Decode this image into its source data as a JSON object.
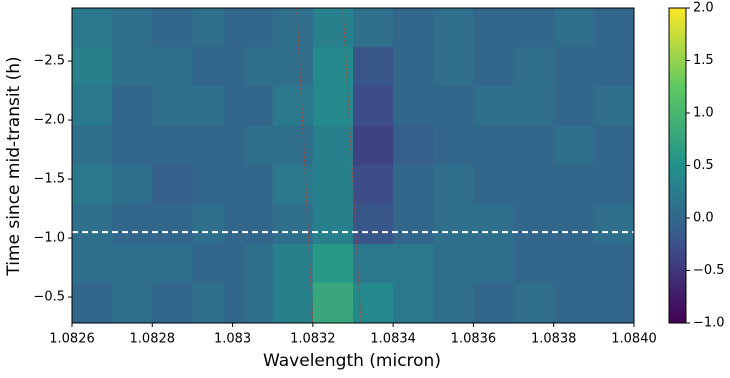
{
  "chart_data": {
    "type": "heatmap",
    "xlabel": "Wavelength (micron)",
    "ylabel": "Time since mid-transit (h)",
    "xlim": [
      1.0826,
      1.084
    ],
    "xticks": [
      1.0826,
      1.0828,
      1.083,
      1.0832,
      1.0834,
      1.0836,
      1.0838,
      {
        "value": 1.084,
        "label": "1.0840"
      }
    ],
    "ylim": [
      -2.95,
      -0.28
    ],
    "y_inverted": true,
    "yticks": [
      {
        "value": -2.5,
        "label": "−2.5"
      },
      {
        "value": -2,
        "label": "−2.0"
      },
      {
        "value": -1.5,
        "label": "−1.5"
      },
      {
        "value": -1,
        "label": "−1.0"
      },
      {
        "value": -0.5,
        "label": "−0.5"
      }
    ],
    "x_bins": [
      1.0826,
      1.0827,
      1.0828,
      1.0829,
      1.083,
      1.0831,
      1.0832,
      1.0833,
      1.0834,
      1.0835,
      1.0836,
      1.0837,
      1.0838,
      1.0839,
      1.084
    ],
    "y_bins": [
      -2.95,
      -2.62,
      -2.29,
      -1.95,
      -1.62,
      -1.29,
      -0.95,
      -0.62,
      -0.28
    ],
    "z": [
      [
        0.2,
        0.1,
        0.0,
        0.1,
        0.0,
        0.1,
        0.3,
        0.1,
        0.0,
        0.1,
        0.0,
        0.0,
        0.1,
        0.0
      ],
      [
        0.3,
        0.1,
        0.1,
        0.0,
        0.1,
        0.1,
        0.4,
        -0.2,
        0.0,
        0.1,
        0.0,
        0.1,
        0.0,
        0.0
      ],
      [
        0.2,
        0.0,
        0.1,
        0.1,
        0.0,
        0.2,
        0.4,
        -0.3,
        0.0,
        0.0,
        0.1,
        0.1,
        0.0,
        0.1
      ],
      [
        0.1,
        0.0,
        0.0,
        0.0,
        0.1,
        0.1,
        0.3,
        -0.4,
        -0.1,
        0.0,
        0.0,
        0.0,
        0.1,
        0.0
      ],
      [
        0.2,
        0.1,
        -0.1,
        0.0,
        0.0,
        0.2,
        0.3,
        -0.3,
        0.0,
        0.1,
        0.0,
        0.0,
        0.0,
        0.0
      ],
      [
        0.1,
        0.0,
        0.0,
        0.1,
        0.0,
        0.1,
        0.3,
        -0.2,
        0.0,
        0.1,
        0.1,
        0.0,
        0.0,
        0.1
      ],
      [
        0.1,
        0.1,
        0.1,
        0.0,
        0.1,
        0.3,
        0.6,
        0.2,
        0.2,
        0.1,
        0.1,
        0.0,
        0.0,
        0.0
      ],
      [
        0.0,
        0.1,
        0.0,
        0.1,
        0.1,
        0.3,
        0.8,
        0.4,
        0.2,
        0.1,
        0.0,
        0.1,
        0.0,
        0.0
      ]
    ],
    "masked": {
      "x": [
        1.08298,
        1.08303
      ],
      "value": 0
    },
    "hline": {
      "y": -1.05,
      "color": "#ffffff",
      "dash": true
    },
    "tracks": [
      {
        "color": "#c0392b",
        "x": [
          1.08316,
          1.0832
        ]
      },
      {
        "color": "#c0392b",
        "x": [
          1.083275,
          1.08332
        ]
      }
    ],
    "colorbar": {
      "lim": [
        -1,
        2
      ],
      "ticks": [
        {
          "value": -1,
          "label": "−1.0"
        },
        {
          "value": -0.5,
          "label": "−0.5"
        },
        {
          "value": 0,
          "label": "0.0"
        },
        0.5,
        {
          "value": 1,
          "label": "1.0"
        },
        1.5,
        {
          "value": 2,
          "label": "2.0"
        }
      ]
    }
  }
}
